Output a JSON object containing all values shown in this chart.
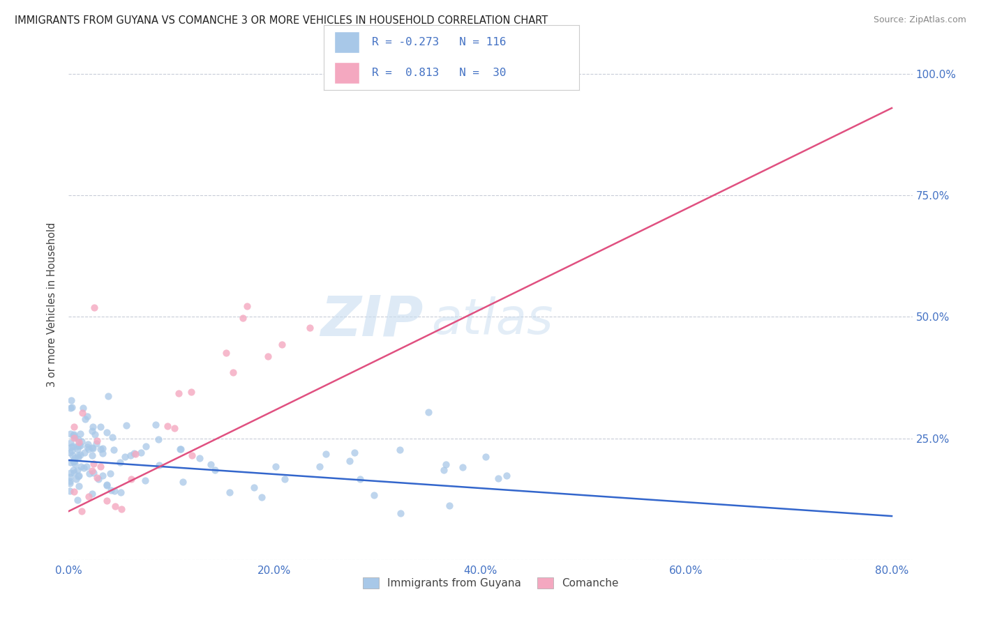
{
  "title": "IMMIGRANTS FROM GUYANA VS COMANCHE 3 OR MORE VEHICLES IN HOUSEHOLD CORRELATION CHART",
  "source": "Source: ZipAtlas.com",
  "ylabel": "3 or more Vehicles in Household",
  "background_color": "#ffffff",
  "watermark_zip": "ZIP",
  "watermark_atlas": "atlas",
  "series1_color": "#a8c8e8",
  "series2_color": "#f4a8c0",
  "line1_color": "#3366cc",
  "line2_color": "#e05080",
  "x_ticks": [
    "0.0%",
    "20.0%",
    "40.0%",
    "60.0%",
    "80.0%"
  ],
  "x_tick_vals": [
    0.0,
    20.0,
    40.0,
    60.0,
    80.0
  ],
  "y_ticks": [
    0.0,
    25.0,
    50.0,
    75.0,
    100.0
  ],
  "y_tick_labels": [
    "",
    "25.0%",
    "50.0%",
    "75.0%",
    "100.0%"
  ],
  "xlim": [
    0,
    82
  ],
  "ylim": [
    0,
    105
  ],
  "line1_x": [
    0.0,
    80.0
  ],
  "line1_y": [
    20.5,
    9.0
  ],
  "line2_x": [
    0.0,
    80.0
  ],
  "line2_y": [
    10.0,
    93.0
  ],
  "line2_solid_end": 80.0
}
